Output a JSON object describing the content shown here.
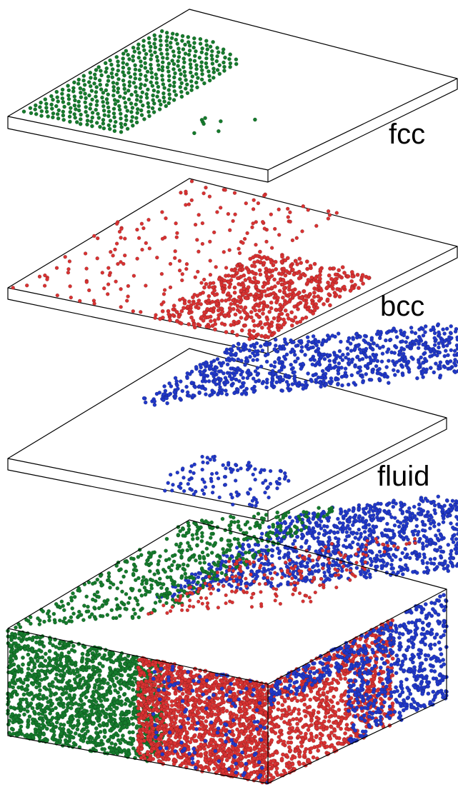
{
  "labels": {
    "fcc": "fcc",
    "bcc": "bcc",
    "fluid": "fluid"
  },
  "colors": {
    "fcc": "#157a2c",
    "bcc": "#d83232",
    "fluid": "#2138c8"
  }
}
